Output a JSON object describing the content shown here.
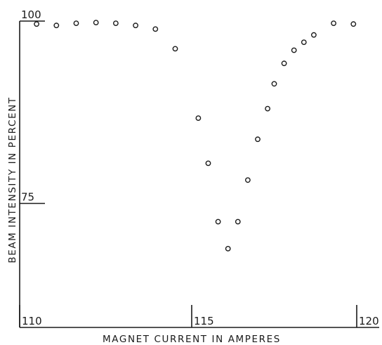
{
  "chart_data": {
    "type": "scatter",
    "title": "",
    "xlabel": "MAGNET CURRENT IN AMPERES",
    "ylabel": "BEAM INTENSITY IN PERCENT",
    "xlim": [
      110,
      120
    ],
    "ylim": [
      58,
      100
    ],
    "grid": false,
    "x_ticks": [
      {
        "value": 110,
        "label": "110"
      },
      {
        "value": 115,
        "label": "115"
      },
      {
        "value": 120,
        "label": "120"
      }
    ],
    "y_ticks": [
      {
        "value": 100,
        "label": "100"
      },
      {
        "value": 75,
        "label": "75"
      }
    ],
    "colors": {
      "ink": "#1a1a1a",
      "background": "#ffffff"
    },
    "series": [
      {
        "x": [
          110.3,
          110.9,
          111.5,
          112.1,
          112.7,
          113.3,
          113.9,
          114.5,
          115.2,
          115.5,
          115.8,
          116.1,
          116.4,
          116.7,
          117.0,
          117.3,
          117.5,
          117.8,
          118.1,
          118.4,
          118.7,
          119.3,
          119.9
        ],
        "y": [
          99.6,
          99.4,
          99.7,
          99.8,
          99.7,
          99.4,
          98.9,
          96.2,
          86.7,
          80.5,
          72.5,
          68.8,
          72.5,
          78.2,
          83.8,
          88.0,
          91.4,
          94.2,
          96.0,
          97.1,
          98.1,
          99.7,
          99.6
        ]
      }
    ]
  }
}
